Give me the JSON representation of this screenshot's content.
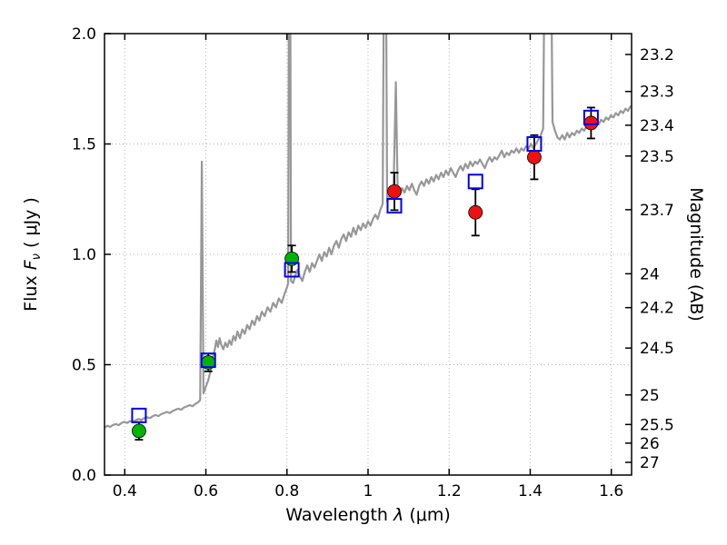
{
  "figure": {
    "background": "#ffffff"
  },
  "chart_data": {
    "type": "line",
    "title": "",
    "description": "Galaxy SED: gray model spectrum with observed photometry (green/red filled circles with error bars) and model photometry (blue open squares)",
    "x_axis": {
      "label": "Wavelength λ (μm)",
      "label_word": "Wavelength",
      "label_symbol": "λ",
      "label_unit": "(μm)",
      "lim": [
        0.35,
        1.65
      ],
      "ticks": [
        0.4,
        0.6,
        0.8,
        1.0,
        1.2,
        1.4,
        1.6
      ],
      "tick_labels": [
        "0.4",
        "0.6",
        "0.8",
        "1",
        "1.2",
        "1.4",
        "1.6"
      ]
    },
    "y_axis_left": {
      "label": "Flux Fν ( μJy )",
      "label_word": "Flux",
      "label_symbol": "F",
      "label_sub": "ν",
      "label_unit": "( μJy )",
      "lim": [
        0.0,
        2.0
      ],
      "ticks": [
        0.0,
        0.5,
        1.0,
        1.5,
        2.0
      ],
      "tick_labels": [
        "0.0",
        "0.5",
        "1.0",
        "1.5",
        "2.0"
      ]
    },
    "y_axis_right": {
      "label": "Magnitude (AB)",
      "ab_zero_point_ujy": 23.9,
      "tick_mags": [
        23.2,
        23.3,
        23.4,
        23.5,
        23.7,
        24.0,
        24.2,
        24.5,
        25.0,
        25.5,
        26.0,
        27.0
      ],
      "tick_labels": [
        "23.2",
        "23.3",
        "23.4",
        "23.5",
        "23.7",
        "24",
        "24.2",
        "24.5",
        "25",
        "25.5",
        "26",
        "27"
      ]
    },
    "grid": {
      "show": true,
      "style": "dotted",
      "color": "#b3b3b3"
    },
    "colors": {
      "spectrum": "#979797",
      "observed_optical": "#00b300",
      "observed_infrared": "#ee1111",
      "model_photometry": "#0000ee",
      "error_bar": "#000000"
    },
    "series": [
      {
        "name": "model-spectrum",
        "kind": "line",
        "color": "#979797",
        "linewidth": 2.2,
        "points": [
          [
            0.35,
            0.215
          ],
          [
            0.357,
            0.224
          ],
          [
            0.364,
            0.218
          ],
          [
            0.371,
            0.227
          ],
          [
            0.378,
            0.231
          ],
          [
            0.385,
            0.226
          ],
          [
            0.392,
            0.236
          ],
          [
            0.399,
            0.241
          ],
          [
            0.406,
            0.236
          ],
          [
            0.413,
            0.245
          ],
          [
            0.42,
            0.241
          ],
          [
            0.427,
            0.249
          ],
          [
            0.434,
            0.254
          ],
          [
            0.441,
            0.25
          ],
          [
            0.448,
            0.258
          ],
          [
            0.455,
            0.262
          ],
          [
            0.462,
            0.258
          ],
          [
            0.469,
            0.267
          ],
          [
            0.476,
            0.272
          ],
          [
            0.483,
            0.267
          ],
          [
            0.49,
            0.276
          ],
          [
            0.497,
            0.281
          ],
          [
            0.504,
            0.286
          ],
          [
            0.511,
            0.281
          ],
          [
            0.518,
            0.29
          ],
          [
            0.525,
            0.296
          ],
          [
            0.532,
            0.301
          ],
          [
            0.539,
            0.296
          ],
          [
            0.546,
            0.306
          ],
          [
            0.553,
            0.311
          ],
          [
            0.56,
            0.317
          ],
          [
            0.567,
            0.312
          ],
          [
            0.574,
            0.322
          ],
          [
            0.581,
            0.33
          ],
          [
            0.586,
            0.34
          ],
          [
            0.59,
            1.42
          ],
          [
            0.594,
            0.37
          ],
          [
            0.598,
            0.39
          ],
          [
            0.602,
            0.41
          ],
          [
            0.606,
            0.43
          ],
          [
            0.61,
            0.46
          ],
          [
            0.614,
            0.5
          ],
          [
            0.618,
            0.54
          ],
          [
            0.622,
            0.57
          ],
          [
            0.626,
            0.61
          ],
          [
            0.63,
            0.58
          ],
          [
            0.634,
            0.62
          ],
          [
            0.638,
            0.59
          ],
          [
            0.643,
            0.57
          ],
          [
            0.648,
            0.6
          ],
          [
            0.653,
            0.58
          ],
          [
            0.658,
            0.61
          ],
          [
            0.663,
            0.59
          ],
          [
            0.668,
            0.63
          ],
          [
            0.673,
            0.61
          ],
          [
            0.678,
            0.65
          ],
          [
            0.684,
            0.62
          ],
          [
            0.69,
            0.66
          ],
          [
            0.696,
            0.64
          ],
          [
            0.702,
            0.68
          ],
          [
            0.708,
            0.66
          ],
          [
            0.714,
            0.7
          ],
          [
            0.72,
            0.68
          ],
          [
            0.726,
            0.72
          ],
          [
            0.732,
            0.7
          ],
          [
            0.738,
            0.74
          ],
          [
            0.745,
            0.72
          ],
          [
            0.752,
            0.76
          ],
          [
            0.759,
            0.74
          ],
          [
            0.766,
            0.78
          ],
          [
            0.773,
            0.76
          ],
          [
            0.78,
            0.8
          ],
          [
            0.787,
            0.78
          ],
          [
            0.794,
            0.82
          ],
          [
            0.8,
            0.85
          ],
          [
            0.803,
            0.87
          ],
          [
            0.8065,
            3.5
          ],
          [
            0.81,
            0.88
          ],
          [
            0.815,
            0.87
          ],
          [
            0.82,
            0.9
          ],
          [
            0.826,
            0.93
          ],
          [
            0.832,
            0.9
          ],
          [
            0.838,
            0.88
          ],
          [
            0.844,
            0.92
          ],
          [
            0.85,
            0.95
          ],
          [
            0.856,
            0.92
          ],
          [
            0.862,
            0.96
          ],
          [
            0.868,
            0.94
          ],
          [
            0.874,
            0.97
          ],
          [
            0.88,
            1.0
          ],
          [
            0.886,
            0.97
          ],
          [
            0.892,
            1.01
          ],
          [
            0.898,
            0.99
          ],
          [
            0.904,
            1.03
          ],
          [
            0.91,
            1.0
          ],
          [
            0.916,
            1.04
          ],
          [
            0.922,
            1.06
          ],
          [
            0.928,
            1.03
          ],
          [
            0.934,
            1.07
          ],
          [
            0.94,
            1.09
          ],
          [
            0.946,
            1.06
          ],
          [
            0.952,
            1.1
          ],
          [
            0.958,
            1.08
          ],
          [
            0.964,
            1.12
          ],
          [
            0.97,
            1.09
          ],
          [
            0.976,
            1.13
          ],
          [
            0.982,
            1.11
          ],
          [
            0.988,
            1.14
          ],
          [
            0.994,
            1.12
          ],
          [
            1.0,
            1.15
          ],
          [
            1.006,
            1.13
          ],
          [
            1.012,
            1.16
          ],
          [
            1.018,
            1.18
          ],
          [
            1.024,
            1.16
          ],
          [
            1.03,
            1.2
          ],
          [
            1.036,
            1.23
          ],
          [
            1.042,
            3.2
          ],
          [
            1.047,
            1.24
          ],
          [
            1.052,
            1.26
          ],
          [
            1.058,
            1.28
          ],
          [
            1.063,
            1.3
          ],
          [
            1.0685,
            1.78
          ],
          [
            1.073,
            1.29
          ],
          [
            1.078,
            1.27
          ],
          [
            1.084,
            1.3
          ],
          [
            1.09,
            1.28
          ],
          [
            1.096,
            1.31
          ],
          [
            1.102,
            1.29
          ],
          [
            1.108,
            1.32
          ],
          [
            1.114,
            1.29
          ],
          [
            1.12,
            1.27
          ],
          [
            1.126,
            1.31
          ],
          [
            1.132,
            1.33
          ],
          [
            1.138,
            1.31
          ],
          [
            1.144,
            1.34
          ],
          [
            1.15,
            1.32
          ],
          [
            1.156,
            1.35
          ],
          [
            1.162,
            1.33
          ],
          [
            1.168,
            1.36
          ],
          [
            1.174,
            1.34
          ],
          [
            1.18,
            1.37
          ],
          [
            1.186,
            1.35
          ],
          [
            1.192,
            1.38
          ],
          [
            1.198,
            1.36
          ],
          [
            1.204,
            1.39
          ],
          [
            1.21,
            1.37
          ],
          [
            1.216,
            1.35
          ],
          [
            1.222,
            1.38
          ],
          [
            1.228,
            1.4
          ],
          [
            1.234,
            1.38
          ],
          [
            1.24,
            1.41
          ],
          [
            1.246,
            1.39
          ],
          [
            1.252,
            1.42
          ],
          [
            1.258,
            1.4
          ],
          [
            1.264,
            1.42
          ],
          [
            1.27,
            1.41
          ],
          [
            1.276,
            1.43
          ],
          [
            1.282,
            1.41
          ],
          [
            1.288,
            1.39
          ],
          [
            1.294,
            1.42
          ],
          [
            1.3,
            1.44
          ],
          [
            1.306,
            1.42
          ],
          [
            1.312,
            1.44
          ],
          [
            1.318,
            1.43
          ],
          [
            1.324,
            1.45
          ],
          [
            1.33,
            1.47
          ],
          [
            1.336,
            1.44
          ],
          [
            1.342,
            1.46
          ],
          [
            1.348,
            1.45
          ],
          [
            1.354,
            1.47
          ],
          [
            1.36,
            1.46
          ],
          [
            1.366,
            1.48
          ],
          [
            1.372,
            1.46
          ],
          [
            1.378,
            1.48
          ],
          [
            1.384,
            1.47
          ],
          [
            1.39,
            1.49
          ],
          [
            1.396,
            1.48
          ],
          [
            1.402,
            1.5
          ],
          [
            1.408,
            1.48
          ],
          [
            1.414,
            1.5
          ],
          [
            1.42,
            1.52
          ],
          [
            1.426,
            1.54
          ],
          [
            1.432,
            1.57
          ],
          [
            1.438,
            2.9
          ],
          [
            1.444,
            2.4
          ],
          [
            1.449,
            2.9
          ],
          [
            1.455,
            1.6
          ],
          [
            1.461,
            1.56
          ],
          [
            1.467,
            1.53
          ],
          [
            1.473,
            1.52
          ],
          [
            1.479,
            1.54
          ],
          [
            1.485,
            1.52
          ],
          [
            1.491,
            1.55
          ],
          [
            1.497,
            1.53
          ],
          [
            1.503,
            1.55
          ],
          [
            1.509,
            1.54
          ],
          [
            1.515,
            1.56
          ],
          [
            1.521,
            1.55
          ],
          [
            1.527,
            1.57
          ],
          [
            1.533,
            1.56
          ],
          [
            1.539,
            1.58
          ],
          [
            1.545,
            1.57
          ],
          [
            1.551,
            1.59
          ],
          [
            1.557,
            1.58
          ],
          [
            1.563,
            1.6
          ],
          [
            1.569,
            1.59
          ],
          [
            1.575,
            1.61
          ],
          [
            1.581,
            1.6
          ],
          [
            1.587,
            1.62
          ],
          [
            1.593,
            1.61
          ],
          [
            1.599,
            1.63
          ],
          [
            1.605,
            1.62
          ],
          [
            1.611,
            1.64
          ],
          [
            1.617,
            1.63
          ],
          [
            1.623,
            1.65
          ],
          [
            1.629,
            1.64
          ],
          [
            1.635,
            1.66
          ],
          [
            1.641,
            1.65
          ],
          [
            1.647,
            1.67
          ],
          [
            1.65,
            1.67
          ]
        ]
      },
      {
        "name": "observed-photometry-optical",
        "kind": "scatter",
        "marker": "circle",
        "color": "#00b300",
        "size": 15,
        "points": [
          {
            "x": 0.435,
            "y": 0.2,
            "yerr": 0.04
          },
          {
            "x": 0.606,
            "y": 0.51,
            "yerr": 0.04
          },
          {
            "x": 0.812,
            "y": 0.98,
            "yerr": 0.06
          }
        ]
      },
      {
        "name": "observed-photometry-infrared",
        "kind": "scatter",
        "marker": "circle",
        "color": "#ee1111",
        "size": 15,
        "points": [
          {
            "x": 1.065,
            "y": 1.285,
            "yerr": 0.085
          },
          {
            "x": 1.265,
            "y": 1.19,
            "yerr": 0.105
          },
          {
            "x": 1.41,
            "y": 1.44,
            "yerr": 0.1
          },
          {
            "x": 1.55,
            "y": 1.595,
            "yerr": 0.07
          }
        ]
      },
      {
        "name": "model-photometry",
        "kind": "scatter",
        "marker": "square-open",
        "color": "#0000ee",
        "size": 15,
        "points": [
          {
            "x": 0.435,
            "y": 0.27
          },
          {
            "x": 0.606,
            "y": 0.52
          },
          {
            "x": 0.812,
            "y": 0.93
          },
          {
            "x": 1.065,
            "y": 1.22
          },
          {
            "x": 1.265,
            "y": 1.33
          },
          {
            "x": 1.41,
            "y": 1.5
          },
          {
            "x": 1.55,
            "y": 1.62
          }
        ]
      }
    ]
  }
}
